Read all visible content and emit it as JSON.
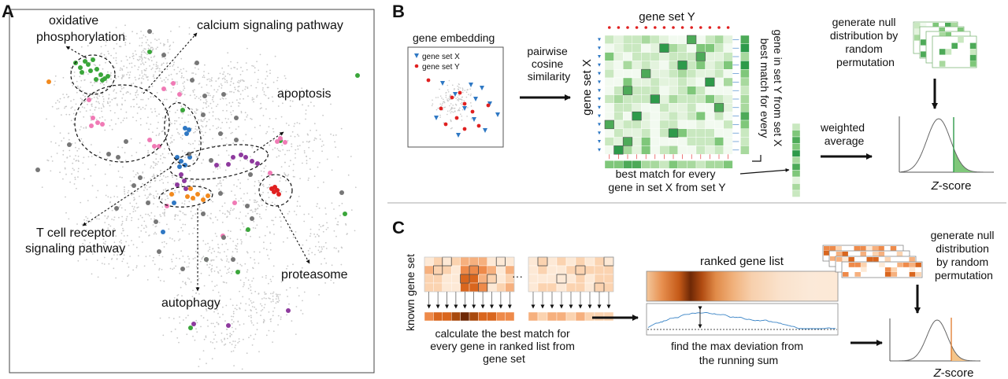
{
  "panels": {
    "a": "A",
    "b": "B",
    "c": "C"
  },
  "panel_a": {
    "labels": {
      "oxphos": [
        "oxidative",
        "phosphorylation"
      ],
      "calcium": "calcium signaling pathway",
      "apoptosis": "apoptosis",
      "tcell": [
        "T cell receptor",
        "signaling pathway"
      ],
      "proteasome": "proteasome",
      "autophagy": "autophagy"
    },
    "colors": {
      "background": "#c8c8c8",
      "grey": "#777777",
      "green": "#3aa63a",
      "pink": "#f07ab5",
      "blue": "#2f78c4",
      "purple": "#8e3a9e",
      "orange": "#f28a1e",
      "red": "#e02020"
    }
  },
  "panel_b": {
    "gene_embedding": "gene embedding",
    "legend_x": "gene set X",
    "legend_y": "gene set Y",
    "pairwise": [
      "pairwise",
      "cosine",
      "similarity"
    ],
    "gene_set_y": "gene set Y",
    "gene_set_x": "gene set X",
    "best_match_y": [
      "best match for every",
      "gene in set Y from set X"
    ],
    "best_match_x": [
      "best match for every",
      "gene in set X from set Y"
    ],
    "weighted": [
      "weighted",
      "average"
    ],
    "null": [
      "generate null",
      "distribution by",
      "random",
      "permutation"
    ],
    "z_prefix": "Z",
    "z_suffix": "-score",
    "colors": {
      "green": "#2e9a4a",
      "light_green": "#c9e8c0",
      "red": "#e02020",
      "blue": "#2f78c4"
    }
  },
  "panel_c": {
    "known_gene_set": "known gene set",
    "dots": "···",
    "calc": [
      "calculate the best match for",
      "every gene in ranked list from",
      "gene set"
    ],
    "ranked": "ranked gene list",
    "maxdev": [
      "find the max deviation from",
      "the running sum"
    ],
    "null": [
      "generate null",
      "distribution",
      "by random",
      "permutation"
    ],
    "z_prefix": "Z",
    "z_suffix": "-score",
    "colors": {
      "orange": "#e07a2a",
      "dark": "#8a3208",
      "blue": "#3a84c6"
    }
  }
}
